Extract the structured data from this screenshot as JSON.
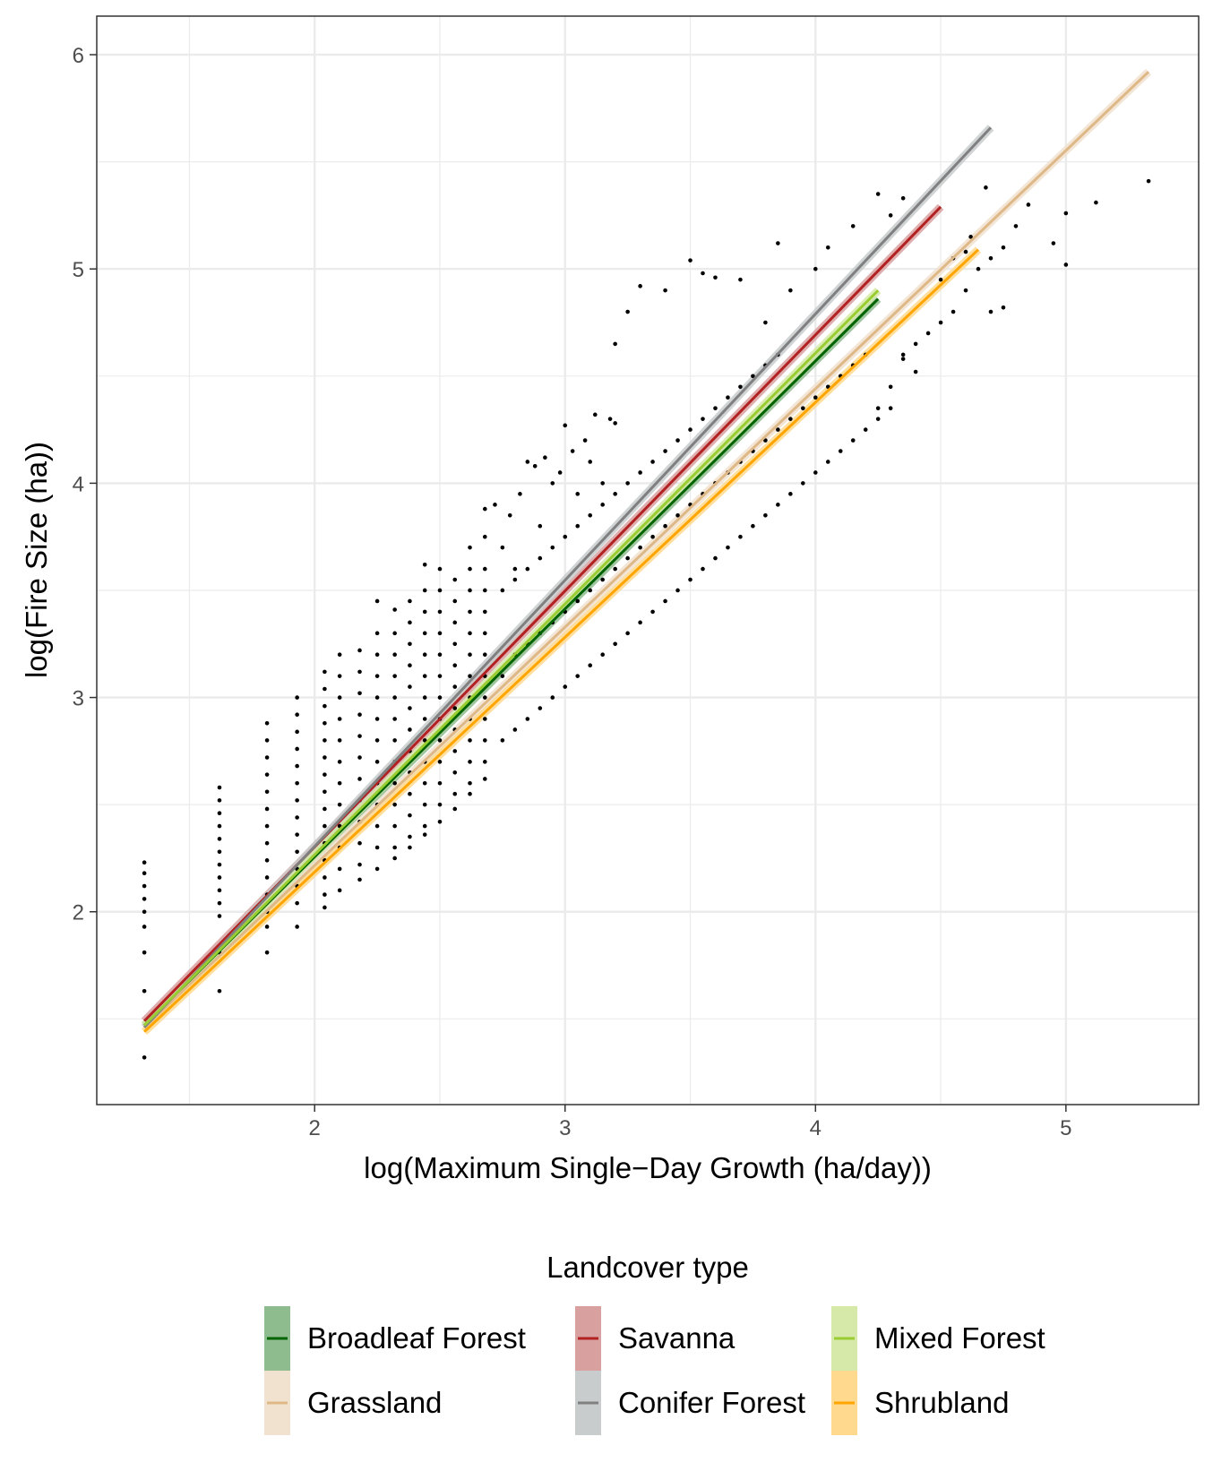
{
  "chart_data": {
    "type": "scatter",
    "xlabel": "log(Maximum Single−Day Growth (ha/day))",
    "ylabel": "log(Fire Size (ha))",
    "xlim": [
      1.13,
      5.53
    ],
    "ylim": [
      1.1,
      6.18
    ],
    "x_ticks": [
      2,
      3,
      4,
      5
    ],
    "x_tick_labels": [
      "2",
      "3",
      "4",
      "5"
    ],
    "x_minor_ticks": [
      1.5,
      2.5,
      3.5,
      4.5
    ],
    "y_ticks": [
      2,
      3,
      4,
      5,
      6
    ],
    "y_tick_labels": [
      "2",
      "3",
      "4",
      "5",
      "6"
    ],
    "y_minor_ticks": [
      1.5,
      2.5,
      3.5,
      4.5,
      5.5
    ],
    "grid": true,
    "legend": {
      "title": "Landcover type",
      "position": "bottom",
      "columns": 3
    },
    "points_description_series": "Observations",
    "points": [
      [
        1.32,
        2.23
      ],
      [
        1.32,
        2.18
      ],
      [
        1.32,
        2.12
      ],
      [
        1.32,
        2.06
      ],
      [
        1.32,
        2.0
      ],
      [
        1.32,
        1.93
      ],
      [
        1.32,
        1.81
      ],
      [
        1.32,
        1.63
      ],
      [
        1.32,
        1.32
      ],
      [
        1.62,
        2.58
      ],
      [
        1.62,
        2.52
      ],
      [
        1.62,
        2.46
      ],
      [
        1.62,
        2.4
      ],
      [
        1.62,
        2.34
      ],
      [
        1.62,
        2.28
      ],
      [
        1.62,
        2.22
      ],
      [
        1.62,
        2.16
      ],
      [
        1.62,
        2.1
      ],
      [
        1.62,
        2.04
      ],
      [
        1.62,
        1.98
      ],
      [
        1.62,
        1.81
      ],
      [
        1.62,
        1.63
      ],
      [
        1.81,
        2.88
      ],
      [
        1.81,
        2.8
      ],
      [
        1.81,
        2.72
      ],
      [
        1.81,
        2.64
      ],
      [
        1.81,
        2.56
      ],
      [
        1.81,
        2.48
      ],
      [
        1.81,
        2.4
      ],
      [
        1.81,
        2.32
      ],
      [
        1.81,
        2.24
      ],
      [
        1.81,
        2.16
      ],
      [
        1.81,
        2.08
      ],
      [
        1.81,
        2.0
      ],
      [
        1.81,
        1.93
      ],
      [
        1.81,
        1.81
      ],
      [
        1.93,
        3.0
      ],
      [
        1.93,
        2.92
      ],
      [
        1.93,
        2.84
      ],
      [
        1.93,
        2.76
      ],
      [
        1.93,
        2.68
      ],
      [
        1.93,
        2.6
      ],
      [
        1.93,
        2.52
      ],
      [
        1.93,
        2.44
      ],
      [
        1.93,
        2.36
      ],
      [
        1.93,
        2.28
      ],
      [
        1.93,
        2.2
      ],
      [
        1.93,
        2.12
      ],
      [
        1.93,
        2.04
      ],
      [
        1.93,
        1.93
      ],
      [
        2.04,
        3.12
      ],
      [
        2.04,
        3.04
      ],
      [
        2.04,
        2.96
      ],
      [
        2.04,
        2.88
      ],
      [
        2.04,
        2.8
      ],
      [
        2.04,
        2.72
      ],
      [
        2.04,
        2.64
      ],
      [
        2.04,
        2.56
      ],
      [
        2.04,
        2.48
      ],
      [
        2.04,
        2.4
      ],
      [
        2.04,
        2.32
      ],
      [
        2.04,
        2.24
      ],
      [
        2.04,
        2.16
      ],
      [
        2.04,
        2.08
      ],
      [
        2.04,
        2.02
      ],
      [
        2.1,
        3.2
      ],
      [
        2.1,
        3.1
      ],
      [
        2.1,
        3.0
      ],
      [
        2.1,
        2.9
      ],
      [
        2.1,
        2.8
      ],
      [
        2.1,
        2.7
      ],
      [
        2.1,
        2.6
      ],
      [
        2.1,
        2.5
      ],
      [
        2.1,
        2.4
      ],
      [
        2.1,
        2.3
      ],
      [
        2.1,
        2.2
      ],
      [
        2.1,
        2.1
      ],
      [
        2.18,
        3.22
      ],
      [
        2.18,
        3.12
      ],
      [
        2.18,
        3.02
      ],
      [
        2.18,
        2.92
      ],
      [
        2.18,
        2.82
      ],
      [
        2.18,
        2.72
      ],
      [
        2.18,
        2.62
      ],
      [
        2.18,
        2.52
      ],
      [
        2.18,
        2.42
      ],
      [
        2.18,
        2.32
      ],
      [
        2.18,
        2.22
      ],
      [
        2.18,
        2.15
      ],
      [
        2.25,
        3.45
      ],
      [
        2.25,
        3.3
      ],
      [
        2.25,
        3.2
      ],
      [
        2.25,
        3.1
      ],
      [
        2.25,
        3.0
      ],
      [
        2.25,
        2.9
      ],
      [
        2.25,
        2.8
      ],
      [
        2.25,
        2.7
      ],
      [
        2.25,
        2.6
      ],
      [
        2.25,
        2.5
      ],
      [
        2.25,
        2.4
      ],
      [
        2.25,
        2.3
      ],
      [
        2.25,
        2.2
      ],
      [
        2.32,
        3.41
      ],
      [
        2.32,
        3.3
      ],
      [
        2.32,
        3.2
      ],
      [
        2.32,
        3.1
      ],
      [
        2.32,
        3.0
      ],
      [
        2.32,
        2.9
      ],
      [
        2.32,
        2.8
      ],
      [
        2.32,
        2.7
      ],
      [
        2.32,
        2.6
      ],
      [
        2.32,
        2.5
      ],
      [
        2.32,
        2.4
      ],
      [
        2.32,
        2.3
      ],
      [
        2.32,
        2.25
      ],
      [
        2.38,
        3.45
      ],
      [
        2.38,
        3.35
      ],
      [
        2.38,
        3.25
      ],
      [
        2.38,
        3.15
      ],
      [
        2.38,
        3.05
      ],
      [
        2.38,
        2.95
      ],
      [
        2.38,
        2.85
      ],
      [
        2.38,
        2.75
      ],
      [
        2.38,
        2.65
      ],
      [
        2.38,
        2.55
      ],
      [
        2.38,
        2.45
      ],
      [
        2.38,
        2.35
      ],
      [
        2.38,
        2.3
      ],
      [
        2.44,
        3.62
      ],
      [
        2.44,
        3.5
      ],
      [
        2.44,
        3.4
      ],
      [
        2.44,
        3.3
      ],
      [
        2.44,
        3.2
      ],
      [
        2.44,
        3.1
      ],
      [
        2.44,
        3.0
      ],
      [
        2.44,
        2.9
      ],
      [
        2.44,
        2.8
      ],
      [
        2.44,
        2.7
      ],
      [
        2.44,
        2.6
      ],
      [
        2.44,
        2.5
      ],
      [
        2.44,
        2.4
      ],
      [
        2.44,
        2.36
      ],
      [
        2.5,
        3.6
      ],
      [
        2.5,
        3.5
      ],
      [
        2.5,
        3.4
      ],
      [
        2.5,
        3.3
      ],
      [
        2.5,
        3.2
      ],
      [
        2.5,
        3.1
      ],
      [
        2.5,
        3.0
      ],
      [
        2.5,
        2.9
      ],
      [
        2.5,
        2.8
      ],
      [
        2.5,
        2.7
      ],
      [
        2.5,
        2.6
      ],
      [
        2.5,
        2.5
      ],
      [
        2.5,
        2.42
      ],
      [
        2.56,
        3.55
      ],
      [
        2.56,
        3.45
      ],
      [
        2.56,
        3.35
      ],
      [
        2.56,
        3.25
      ],
      [
        2.56,
        3.15
      ],
      [
        2.56,
        3.05
      ],
      [
        2.56,
        2.95
      ],
      [
        2.56,
        2.85
      ],
      [
        2.56,
        2.75
      ],
      [
        2.56,
        2.65
      ],
      [
        2.56,
        2.55
      ],
      [
        2.56,
        2.48
      ],
      [
        2.62,
        3.7
      ],
      [
        2.62,
        3.6
      ],
      [
        2.62,
        3.5
      ],
      [
        2.62,
        3.4
      ],
      [
        2.62,
        3.3
      ],
      [
        2.62,
        3.2
      ],
      [
        2.62,
        3.1
      ],
      [
        2.62,
        3.0
      ],
      [
        2.62,
        2.9
      ],
      [
        2.62,
        2.8
      ],
      [
        2.62,
        2.7
      ],
      [
        2.62,
        2.6
      ],
      [
        2.62,
        2.55
      ],
      [
        2.68,
        3.88
      ],
      [
        2.68,
        3.75
      ],
      [
        2.68,
        3.6
      ],
      [
        2.68,
        3.5
      ],
      [
        2.68,
        3.4
      ],
      [
        2.68,
        3.3
      ],
      [
        2.68,
        3.2
      ],
      [
        2.68,
        3.1
      ],
      [
        2.68,
        3.0
      ],
      [
        2.68,
        2.9
      ],
      [
        2.68,
        2.8
      ],
      [
        2.68,
        2.7
      ],
      [
        2.68,
        2.62
      ],
      [
        2.72,
        3.9
      ],
      [
        2.75,
        3.7
      ],
      [
        2.78,
        3.85
      ],
      [
        2.8,
        3.6
      ],
      [
        2.82,
        3.95
      ],
      [
        2.85,
        4.1
      ],
      [
        2.88,
        4.08
      ],
      [
        2.9,
        3.8
      ],
      [
        2.92,
        4.12
      ],
      [
        2.95,
        4.0
      ],
      [
        2.98,
        4.05
      ],
      [
        3.0,
        4.27
      ],
      [
        3.03,
        4.15
      ],
      [
        3.05,
        3.95
      ],
      [
        3.08,
        4.2
      ],
      [
        3.1,
        4.1
      ],
      [
        3.12,
        4.32
      ],
      [
        3.15,
        4.0
      ],
      [
        3.18,
        4.3
      ],
      [
        3.2,
        4.28
      ],
      [
        2.75,
        2.8
      ],
      [
        2.8,
        2.85
      ],
      [
        2.85,
        2.9
      ],
      [
        2.9,
        2.95
      ],
      [
        2.95,
        3.0
      ],
      [
        3.0,
        3.05
      ],
      [
        3.05,
        3.1
      ],
      [
        3.1,
        3.15
      ],
      [
        3.15,
        3.2
      ],
      [
        3.2,
        3.25
      ],
      [
        3.25,
        3.3
      ],
      [
        3.3,
        3.35
      ],
      [
        3.35,
        3.4
      ],
      [
        3.4,
        3.45
      ],
      [
        3.45,
        3.5
      ],
      [
        3.5,
        3.55
      ],
      [
        3.55,
        3.6
      ],
      [
        3.6,
        3.65
      ],
      [
        3.65,
        3.7
      ],
      [
        3.7,
        3.75
      ],
      [
        3.75,
        3.8
      ],
      [
        3.8,
        3.85
      ],
      [
        3.85,
        3.9
      ],
      [
        3.9,
        3.95
      ],
      [
        3.95,
        4.0
      ],
      [
        4.0,
        4.05
      ],
      [
        4.05,
        4.1
      ],
      [
        4.1,
        4.15
      ],
      [
        4.15,
        4.2
      ],
      [
        4.2,
        4.25
      ],
      [
        4.25,
        4.3
      ],
      [
        4.3,
        4.35
      ],
      [
        2.75,
        3.1
      ],
      [
        2.8,
        3.2
      ],
      [
        2.85,
        3.25
      ],
      [
        2.9,
        3.3
      ],
      [
        2.95,
        3.35
      ],
      [
        3.0,
        3.4
      ],
      [
        3.05,
        3.45
      ],
      [
        3.1,
        3.5
      ],
      [
        3.15,
        3.55
      ],
      [
        3.2,
        3.6
      ],
      [
        3.25,
        3.65
      ],
      [
        3.3,
        3.7
      ],
      [
        3.35,
        3.75
      ],
      [
        3.4,
        3.8
      ],
      [
        3.45,
        3.85
      ],
      [
        3.5,
        3.9
      ],
      [
        3.55,
        3.95
      ],
      [
        3.6,
        4.0
      ],
      [
        3.65,
        4.05
      ],
      [
        3.7,
        4.1
      ],
      [
        3.75,
        4.15
      ],
      [
        3.8,
        4.2
      ],
      [
        3.85,
        4.25
      ],
      [
        3.9,
        4.3
      ],
      [
        3.95,
        4.35
      ],
      [
        4.0,
        4.4
      ],
      [
        4.05,
        4.45
      ],
      [
        4.1,
        4.5
      ],
      [
        4.15,
        4.55
      ],
      [
        4.2,
        4.6
      ],
      [
        2.75,
        3.5
      ],
      [
        2.8,
        3.55
      ],
      [
        2.85,
        3.6
      ],
      [
        2.9,
        3.65
      ],
      [
        2.95,
        3.7
      ],
      [
        3.0,
        3.75
      ],
      [
        3.05,
        3.8
      ],
      [
        3.1,
        3.85
      ],
      [
        3.15,
        3.9
      ],
      [
        3.2,
        3.95
      ],
      [
        3.25,
        4.0
      ],
      [
        3.3,
        4.05
      ],
      [
        3.35,
        4.1
      ],
      [
        3.4,
        4.15
      ],
      [
        3.45,
        4.2
      ],
      [
        3.5,
        4.25
      ],
      [
        3.55,
        4.3
      ],
      [
        3.6,
        4.35
      ],
      [
        3.65,
        4.4
      ],
      [
        3.7,
        4.45
      ],
      [
        3.75,
        4.5
      ],
      [
        3.8,
        4.55
      ],
      [
        3.85,
        4.6
      ],
      [
        3.2,
        4.65
      ],
      [
        3.25,
        4.8
      ],
      [
        3.3,
        4.92
      ],
      [
        3.4,
        4.9
      ],
      [
        3.5,
        5.04
      ],
      [
        3.55,
        4.98
      ],
      [
        3.6,
        4.96
      ],
      [
        3.7,
        4.95
      ],
      [
        3.8,
        4.75
      ],
      [
        3.85,
        5.12
      ],
      [
        3.9,
        4.9
      ],
      [
        4.0,
        5.0
      ],
      [
        4.05,
        5.1
      ],
      [
        4.15,
        5.2
      ],
      [
        4.25,
        5.35
      ],
      [
        4.3,
        5.25
      ],
      [
        4.35,
        5.33
      ],
      [
        4.35,
        4.6
      ],
      [
        4.4,
        4.65
      ],
      [
        4.45,
        4.7
      ],
      [
        4.5,
        4.75
      ],
      [
        4.55,
        4.8
      ],
      [
        4.6,
        4.9
      ],
      [
        4.65,
        5.0
      ],
      [
        4.7,
        5.05
      ],
      [
        4.75,
        5.1
      ],
      [
        4.8,
        5.2
      ],
      [
        4.85,
        5.3
      ],
      [
        4.95,
        5.12
      ],
      [
        5.0,
        5.26
      ],
      [
        5.0,
        5.02
      ],
      [
        5.12,
        5.31
      ],
      [
        5.33,
        5.41
      ],
      [
        4.7,
        4.8
      ],
      [
        4.75,
        4.82
      ],
      [
        4.68,
        5.38
      ],
      [
        4.62,
        5.15
      ],
      [
        4.55,
        5.05
      ],
      [
        4.4,
        4.52
      ],
      [
        4.3,
        4.45
      ],
      [
        4.25,
        4.35
      ],
      [
        4.35,
        4.58
      ],
      [
        4.5,
        4.95
      ],
      [
        4.6,
        5.08
      ]
    ],
    "series": [
      {
        "name": "Broadleaf Forest",
        "color": "#006400",
        "band": "#8fbc8f",
        "x": [
          1.32,
          4.25
        ],
        "y": [
          1.47,
          4.86
        ]
      },
      {
        "name": "Grassland",
        "color": "#deb887",
        "band": "#f1e2cf",
        "x": [
          1.32,
          5.33
        ],
        "y": [
          1.46,
          5.92
        ]
      },
      {
        "name": "Savanna",
        "color": "#b22222",
        "band": "#d9a0a0",
        "x": [
          1.32,
          4.5
        ],
        "y": [
          1.49,
          5.29
        ]
      },
      {
        "name": "Conifer Forest",
        "color": "#808080",
        "band": "#c9cccc",
        "x": [
          1.32,
          4.7
        ],
        "y": [
          1.46,
          5.66
        ]
      },
      {
        "name": "Mixed Forest",
        "color": "#9acd32",
        "band": "#d6e9a8",
        "x": [
          1.32,
          4.25
        ],
        "y": [
          1.47,
          4.9
        ]
      },
      {
        "name": "Shrubland",
        "color": "#ffa500",
        "band": "#ffd98e",
        "x": [
          1.32,
          4.65
        ],
        "y": [
          1.44,
          5.09
        ]
      }
    ]
  }
}
